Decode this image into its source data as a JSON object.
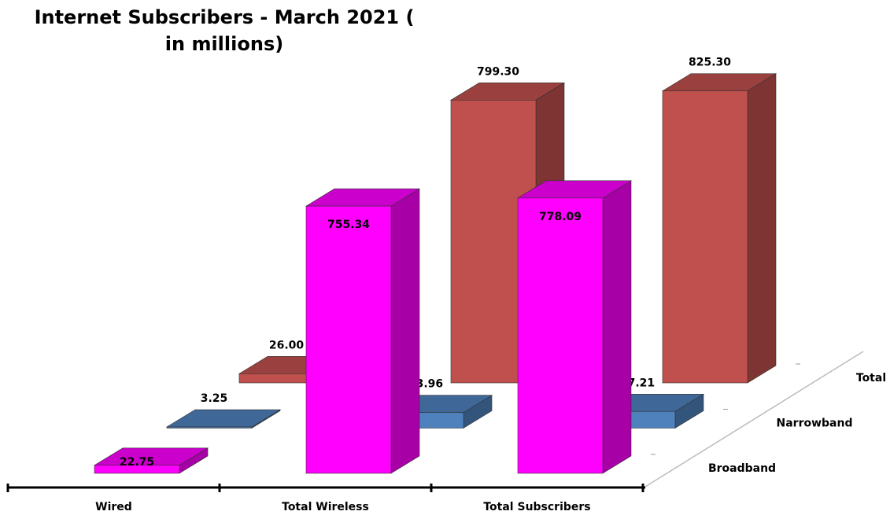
{
  "chart_data": {
    "type": "bar3d",
    "title": "Internet Subscribers - March 2021 ( in millions)",
    "categories": [
      "Wired",
      "Total Wireless",
      "Total Subscribers"
    ],
    "series": [
      {
        "name": "Broadband",
        "color": "#ff00ff",
        "values": [
          22.75,
          755.34,
          778.09
        ],
        "value_labels": [
          "22.75",
          "755.34",
          "778.09"
        ]
      },
      {
        "name": "Narrowband",
        "color": "#4f81bd",
        "values": [
          3.25,
          43.96,
          47.21
        ],
        "value_labels": [
          "3.25",
          "43.96",
          "47.21"
        ]
      },
      {
        "name": "Total",
        "color": "#c0504d",
        "values": [
          26.0,
          799.3,
          825.3
        ],
        "value_labels": [
          "26.00",
          "799.30",
          "825.30"
        ]
      }
    ]
  }
}
